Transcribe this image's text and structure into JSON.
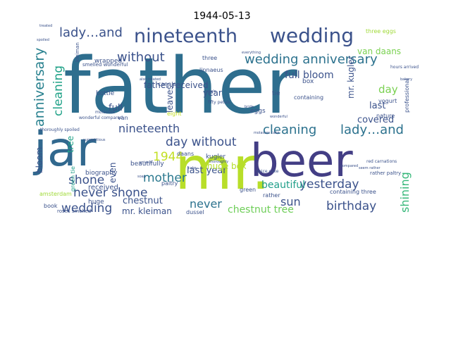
{
  "title": "1944-05-13",
  "words": [
    {
      "text": "father",
      "color": "#2e6e8e"
    },
    {
      "text": "mr.",
      "color": "#b8de29"
    },
    {
      "text": "beer",
      "color": "#433e85"
    },
    {
      "text": "jar",
      "color": "#31688e"
    },
    {
      "text": "wedding",
      "color": "#3b528b"
    },
    {
      "text": "nineteenth",
      "color": "#3b528b"
    },
    {
      "text": "lady…and",
      "color": "#3b528b"
    },
    {
      "text": "wedding anniversary",
      "color": "#2c728e"
    },
    {
      "text": "anniversary",
      "color": "#27808e"
    },
    {
      "text": "without",
      "color": "#3b528b"
    },
    {
      "text": "cleaning",
      "color": "#1fa187"
    },
    {
      "text": "nineteenth",
      "color": "#3b528b"
    },
    {
      "text": "cleaning",
      "color": "#2c728e"
    },
    {
      "text": "lady…and",
      "color": "#2c728e"
    },
    {
      "text": "day without",
      "color": "#3b528b"
    },
    {
      "text": "1944",
      "color": "#c2df23"
    },
    {
      "text": "mother",
      "color": "#2a788e"
    },
    {
      "text": "never shone",
      "color": "#3b528b"
    },
    {
      "text": "shone",
      "color": "#3b528b"
    },
    {
      "text": "wedding",
      "color": "#3b528b"
    },
    {
      "text": "chestnut",
      "color": "#3b528b"
    },
    {
      "text": "yesterday",
      "color": "#3b528b"
    },
    {
      "text": "birthday",
      "color": "#3b528b"
    },
    {
      "text": "beautiful",
      "color": "#1f9e89"
    },
    {
      "text": "shining",
      "color": "#35b779"
    },
    {
      "text": "sun",
      "color": "#3b528b"
    },
    {
      "text": "never",
      "color": "#2c728e"
    },
    {
      "text": "last year",
      "color": "#3b528b"
    },
    {
      "text": "chestnut tree",
      "color": "#6ece58"
    },
    {
      "text": "full bloom",
      "color": "#3b528b"
    },
    {
      "text": "father received",
      "color": "#3b528b"
    },
    {
      "text": "van daans",
      "color": "#7ad151"
    },
    {
      "text": "day",
      "color": "#7ad151"
    },
    {
      "text": "last",
      "color": "#3b528b"
    },
    {
      "text": "covered",
      "color": "#3b528b"
    },
    {
      "text": "mr. kugler",
      "color": "#3b528b"
    },
    {
      "text": "year",
      "color": "#3b528b"
    },
    {
      "text": "full",
      "color": "#3b528b"
    },
    {
      "text": "huge box",
      "color": "#b5de2b"
    },
    {
      "text": "even",
      "color": "#3b528b"
    },
    {
      "text": "tree",
      "color": "#1fa187"
    },
    {
      "text": "bloom",
      "color": "#3b528b"
    },
    {
      "text": "mr. kleiman",
      "color": "#3b528b"
    },
    {
      "text": "leaves",
      "color": "#3b528b"
    },
    {
      "text": "received",
      "color": "#3b528b"
    },
    {
      "text": "three eggs",
      "color": "#a0da39"
    },
    {
      "text": "linnaeus",
      "color": "#3b528b"
    },
    {
      "text": "wrapped",
      "color": "#3b528b"
    },
    {
      "text": "canals",
      "color": "#3b528b"
    },
    {
      "text": "bottle",
      "color": "#3b528b"
    },
    {
      "text": "biography",
      "color": "#3b528b"
    },
    {
      "text": "green tie",
      "color": "#1f9e89"
    },
    {
      "text": "kugler",
      "color": "#3b528b"
    },
    {
      "text": "daans",
      "color": "#3b528b"
    },
    {
      "text": "beautifully",
      "color": "#3b528b"
    },
    {
      "text": "huge",
      "color": "#3b528b"
    },
    {
      "text": "paltry",
      "color": "#3b528b"
    },
    {
      "text": "dussel",
      "color": "#3b528b"
    },
    {
      "text": "amsterdam",
      "color": "#a0da39"
    },
    {
      "text": "book",
      "color": "#3b528b"
    },
    {
      "text": "roses smelled",
      "color": "#3b528b"
    },
    {
      "text": "containing three",
      "color": "#3b528b"
    },
    {
      "text": "containing",
      "color": "#3b528b"
    },
    {
      "text": "box",
      "color": "#3b528b"
    },
    {
      "text": "eggs",
      "color": "#3b528b"
    },
    {
      "text": "tie",
      "color": "#3b528b"
    },
    {
      "text": "nature",
      "color": "#3b528b"
    },
    {
      "text": "yogurt",
      "color": "#3b528b"
    },
    {
      "text": "eight",
      "color": "#c2df23"
    },
    {
      "text": "three",
      "color": "#3b528b"
    },
    {
      "text": "green",
      "color": "#3b528b"
    },
    {
      "text": "rather",
      "color": "#3b528b"
    },
    {
      "text": "professional",
      "color": "#3b528b"
    },
    {
      "text": "molasses",
      "color": "#3b528b"
    },
    {
      "text": "van",
      "color": "#3b528b"
    },
    {
      "text": "smelled wonderful",
      "color": "#3b528b"
    },
    {
      "text": "rather paltry",
      "color": "#3b528b"
    },
    {
      "text": "red carnations",
      "color": "#3b528b"
    },
    {
      "text": "spice cake",
      "color": "#3b528b"
    },
    {
      "text": "wonderful compared",
      "color": "#3b528b"
    },
    {
      "text": "thoroughly spoiled",
      "color": "#3b528b"
    },
    {
      "text": "bakery",
      "color": "#3b528b"
    },
    {
      "text": "hours arrived",
      "color": "#3b528b"
    },
    {
      "text": "fifty petals",
      "color": "#3b528b"
    },
    {
      "text": "kleiman",
      "color": "#3b528b"
    },
    {
      "text": "treated",
      "color": "#3b528b"
    },
    {
      "text": "spoiled",
      "color": "#3b528b"
    },
    {
      "text": "everything",
      "color": "#3b528b"
    },
    {
      "text": "wonderful",
      "color": "#3b528b"
    },
    {
      "text": "seem rather",
      "color": "#3b528b"
    },
    {
      "text": "also treated",
      "color": "#3b528b"
    },
    {
      "text": "cake",
      "color": "#3b528b"
    },
    {
      "text": "surreptitious",
      "color": "#3b528b"
    },
    {
      "text": "bride",
      "color": "#3b528b"
    },
    {
      "text": "molasses cake",
      "color": "#3b528b"
    },
    {
      "text": "thoroughly",
      "color": "#3b528b"
    },
    {
      "text": "compared",
      "color": "#3b528b"
    },
    {
      "text": "petals",
      "color": "#3b528b"
    },
    {
      "text": "soap",
      "color": "#3b528b"
    },
    {
      "text": "arrived",
      "color": "#3b528b"
    }
  ]
}
